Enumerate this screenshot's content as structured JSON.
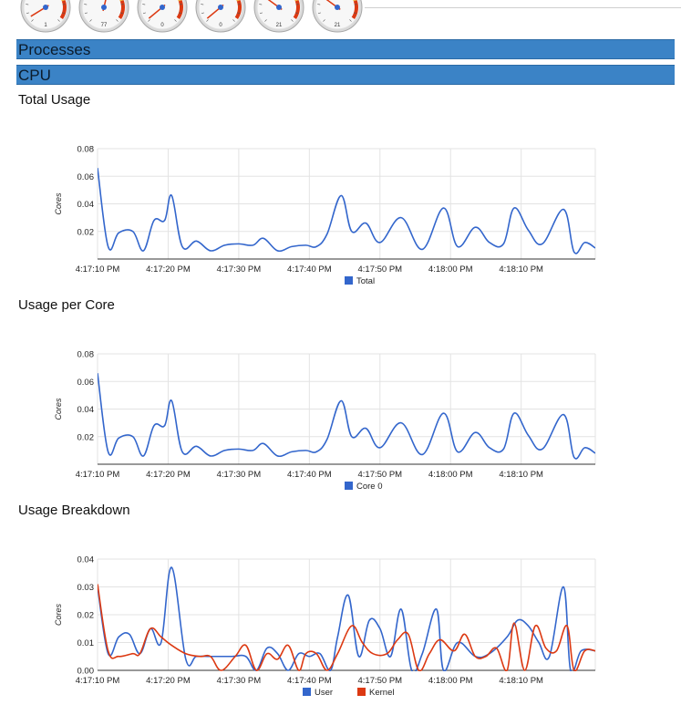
{
  "gauges": [
    {
      "label": "1",
      "level": 0.05
    },
    {
      "label": "77",
      "level": 0.55
    },
    {
      "label": "0",
      "level": 0.02
    },
    {
      "label": "0",
      "level": 0.02
    },
    {
      "label": "21",
      "level": 0.3
    },
    {
      "label": "21",
      "level": 0.3
    }
  ],
  "sections": {
    "processes": "Processes",
    "cpu": "CPU"
  },
  "colors": {
    "section_bar": "#3b83c6",
    "series_blue": "#3366cc",
    "series_red": "#dc3912",
    "gridline": "#e3e3e3"
  },
  "chart_data": [
    {
      "type": "line",
      "title": "Total Usage",
      "ylabel": "Cores",
      "ylim": [
        0,
        0.08
      ],
      "yticks": [
        "0.08",
        "0.06",
        "0.04",
        "0.02"
      ],
      "xtick_labels": [
        "4:17:10 PM",
        "4:17:20 PM",
        "4:17:30 PM",
        "4:17:40 PM",
        "4:17:50 PM",
        "4:18:00 PM",
        "4:18:10 PM"
      ],
      "xlim": [
        0,
        70.5
      ],
      "grid": true,
      "legend_position": "bottom",
      "series": [
        {
          "name": "Total",
          "color": "#3366cc",
          "points": [
            [
              0,
              0.066
            ],
            [
              1.5,
              0.009
            ],
            [
              3,
              0.019
            ],
            [
              5,
              0.02
            ],
            [
              6.5,
              0.006
            ],
            [
              8,
              0.028
            ],
            [
              9.5,
              0.028
            ],
            [
              10.5,
              0.046
            ],
            [
              12,
              0.009
            ],
            [
              14,
              0.013
            ],
            [
              16,
              0.006
            ],
            [
              18,
              0.01
            ],
            [
              20,
              0.011
            ],
            [
              22,
              0.01
            ],
            [
              23.5,
              0.015
            ],
            [
              25.5,
              0.006
            ],
            [
              27.5,
              0.009
            ],
            [
              29.5,
              0.01
            ],
            [
              31,
              0.009
            ],
            [
              32.5,
              0.018
            ],
            [
              34.5,
              0.046
            ],
            [
              36,
              0.02
            ],
            [
              38,
              0.026
            ],
            [
              40,
              0.012
            ],
            [
              43,
              0.03
            ],
            [
              46,
              0.007
            ],
            [
              49,
              0.037
            ],
            [
              51,
              0.009
            ],
            [
              53.5,
              0.023
            ],
            [
              55.5,
              0.012
            ],
            [
              57.5,
              0.011
            ],
            [
              59,
              0.037
            ],
            [
              61,
              0.021
            ],
            [
              63,
              0.011
            ],
            [
              66,
              0.036
            ],
            [
              67.5,
              0.005
            ],
            [
              69,
              0.012
            ],
            [
              70.5,
              0.008
            ]
          ]
        }
      ]
    },
    {
      "type": "line",
      "title": "Usage per Core",
      "ylabel": "Cores",
      "ylim": [
        0,
        0.08
      ],
      "yticks": [
        "0.08",
        "0.06",
        "0.04",
        "0.02"
      ],
      "xtick_labels": [
        "4:17:10 PM",
        "4:17:20 PM",
        "4:17:30 PM",
        "4:17:40 PM",
        "4:17:50 PM",
        "4:18:00 PM",
        "4:18:10 PM"
      ],
      "xlim": [
        0,
        70.5
      ],
      "grid": true,
      "legend_position": "bottom",
      "series": [
        {
          "name": "Core 0",
          "color": "#3366cc",
          "points": [
            [
              0,
              0.066
            ],
            [
              1.5,
              0.009
            ],
            [
              3,
              0.019
            ],
            [
              5,
              0.02
            ],
            [
              6.5,
              0.006
            ],
            [
              8,
              0.028
            ],
            [
              9.5,
              0.028
            ],
            [
              10.5,
              0.046
            ],
            [
              12,
              0.009
            ],
            [
              14,
              0.013
            ],
            [
              16,
              0.006
            ],
            [
              18,
              0.01
            ],
            [
              20,
              0.011
            ],
            [
              22,
              0.01
            ],
            [
              23.5,
              0.015
            ],
            [
              25.5,
              0.006
            ],
            [
              27.5,
              0.009
            ],
            [
              29.5,
              0.01
            ],
            [
              31,
              0.009
            ],
            [
              32.5,
              0.018
            ],
            [
              34.5,
              0.046
            ],
            [
              36,
              0.02
            ],
            [
              38,
              0.026
            ],
            [
              40,
              0.012
            ],
            [
              43,
              0.03
            ],
            [
              46,
              0.007
            ],
            [
              49,
              0.037
            ],
            [
              51,
              0.009
            ],
            [
              53.5,
              0.023
            ],
            [
              55.5,
              0.012
            ],
            [
              57.5,
              0.011
            ],
            [
              59,
              0.037
            ],
            [
              61,
              0.021
            ],
            [
              63,
              0.011
            ],
            [
              66,
              0.036
            ],
            [
              67.5,
              0.005
            ],
            [
              69,
              0.012
            ],
            [
              70.5,
              0.008
            ]
          ]
        }
      ]
    },
    {
      "type": "line",
      "title": "Usage Breakdown",
      "ylabel": "Cores",
      "ylim": [
        0,
        0.04
      ],
      "yticks": [
        "0.04",
        "0.03",
        "0.02",
        "0.01",
        "0.00"
      ],
      "xtick_labels": [
        "4:17:10 PM",
        "4:17:20 PM",
        "4:17:30 PM",
        "4:17:40 PM",
        "4:17:50 PM",
        "4:18:00 PM",
        "4:18:10 PM"
      ],
      "xlim": [
        0,
        70.5
      ],
      "grid": true,
      "legend_position": "bottom",
      "series": [
        {
          "name": "User",
          "color": "#3366cc",
          "points": [
            [
              0,
              0.03
            ],
            [
              1.5,
              0.006
            ],
            [
              3,
              0.012
            ],
            [
              4.5,
              0.013
            ],
            [
              6,
              0.006
            ],
            [
              7.5,
              0.015
            ],
            [
              9,
              0.01
            ],
            [
              10.5,
              0.037
            ],
            [
              12.5,
              0.004
            ],
            [
              14,
              0.005
            ],
            [
              16,
              0.005
            ],
            [
              19,
              0.005
            ],
            [
              21,
              0.005
            ],
            [
              22.5,
              0.0
            ],
            [
              24,
              0.008
            ],
            [
              25.5,
              0.006
            ],
            [
              27,
              0.0
            ],
            [
              28.5,
              0.006
            ],
            [
              30,
              0.005
            ],
            [
              31.5,
              0.006
            ],
            [
              33,
              0.0
            ],
            [
              34,
              0.012
            ],
            [
              35.5,
              0.027
            ],
            [
              37,
              0.005
            ],
            [
              38.5,
              0.018
            ],
            [
              40,
              0.015
            ],
            [
              41.5,
              0.005
            ],
            [
              43,
              0.022
            ],
            [
              44.5,
              0.0
            ],
            [
              46,
              0.006
            ],
            [
              48,
              0.022
            ],
            [
              49,
              0.0
            ],
            [
              51,
              0.01
            ],
            [
              53.5,
              0.005
            ],
            [
              55.5,
              0.006
            ],
            [
              58,
              0.012
            ],
            [
              59.5,
              0.018
            ],
            [
              61,
              0.016
            ],
            [
              62.5,
              0.01
            ],
            [
              64,
              0.005
            ],
            [
              66,
              0.03
            ],
            [
              67,
              0.0
            ],
            [
              68.5,
              0.007
            ],
            [
              70.5,
              0.007
            ]
          ]
        },
        {
          "name": "Kernel",
          "color": "#dc3912",
          "points": [
            [
              0,
              0.031
            ],
            [
              1.5,
              0.007
            ],
            [
              3,
              0.005
            ],
            [
              5,
              0.006
            ],
            [
              6,
              0.006
            ],
            [
              7.5,
              0.015
            ],
            [
              9,
              0.012
            ],
            [
              10.5,
              0.009
            ],
            [
              12.5,
              0.006
            ],
            [
              14.5,
              0.005
            ],
            [
              16,
              0.005
            ],
            [
              17.5,
              0.0
            ],
            [
              19.5,
              0.005
            ],
            [
              21,
              0.009
            ],
            [
              22.5,
              0.0
            ],
            [
              24,
              0.006
            ],
            [
              25.5,
              0.004
            ],
            [
              27,
              0.009
            ],
            [
              28.5,
              0.0
            ],
            [
              29.5,
              0.006
            ],
            [
              31,
              0.006
            ],
            [
              32.5,
              0.0
            ],
            [
              34,
              0.006
            ],
            [
              36,
              0.016
            ],
            [
              37.5,
              0.01
            ],
            [
              39,
              0.006
            ],
            [
              41,
              0.006
            ],
            [
              42.5,
              0.011
            ],
            [
              44,
              0.013
            ],
            [
              45.5,
              0.0
            ],
            [
              47,
              0.006
            ],
            [
              48.5,
              0.011
            ],
            [
              50.5,
              0.007
            ],
            [
              52,
              0.013
            ],
            [
              53.5,
              0.005
            ],
            [
              55,
              0.005
            ],
            [
              56.5,
              0.008
            ],
            [
              58,
              0.0
            ],
            [
              59,
              0.017
            ],
            [
              60.5,
              0.0
            ],
            [
              62,
              0.016
            ],
            [
              63.5,
              0.008
            ],
            [
              65,
              0.007
            ],
            [
              66.5,
              0.016
            ],
            [
              67.5,
              0.0
            ],
            [
              69,
              0.007
            ],
            [
              70.5,
              0.007
            ]
          ]
        }
      ]
    }
  ]
}
